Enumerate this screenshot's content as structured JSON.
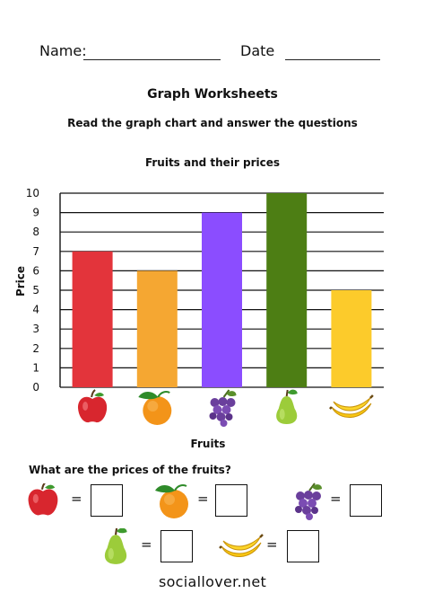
{
  "header": {
    "name_label": "Name:",
    "date_label": "Date"
  },
  "title": "Graph Worksheets",
  "subtitle": "Read the graph chart and answer the questions",
  "chart_data": {
    "type": "bar",
    "title": "Fruits and their prices",
    "xlabel": "Fruits",
    "ylabel": "Price",
    "ylim": [
      0,
      10
    ],
    "yticks": [
      "0",
      "1",
      "2",
      "3",
      "4",
      "5",
      "6",
      "7",
      "8",
      "9",
      "10"
    ],
    "categories": [
      "apple",
      "orange",
      "grapes",
      "pear",
      "banana"
    ],
    "values": [
      7,
      6,
      9,
      10,
      5
    ],
    "colors": [
      "#E3343B",
      "#F5A732",
      "#8B4DFF",
      "#4D7E14",
      "#FCCB2B"
    ],
    "grid": true,
    "legend": "none"
  },
  "question": "What are the prices of the fruits?",
  "answers": [
    {
      "fruit": "apple-icon",
      "equals": "=",
      "answer": ""
    },
    {
      "fruit": "orange-icon",
      "equals": "=",
      "answer": ""
    },
    {
      "fruit": "grapes-icon",
      "equals": "=",
      "answer": ""
    },
    {
      "fruit": "pear-icon",
      "equals": "=",
      "answer": ""
    },
    {
      "fruit": "banana-icon",
      "equals": "=",
      "answer": ""
    }
  ],
  "footer": "sociallover.net"
}
